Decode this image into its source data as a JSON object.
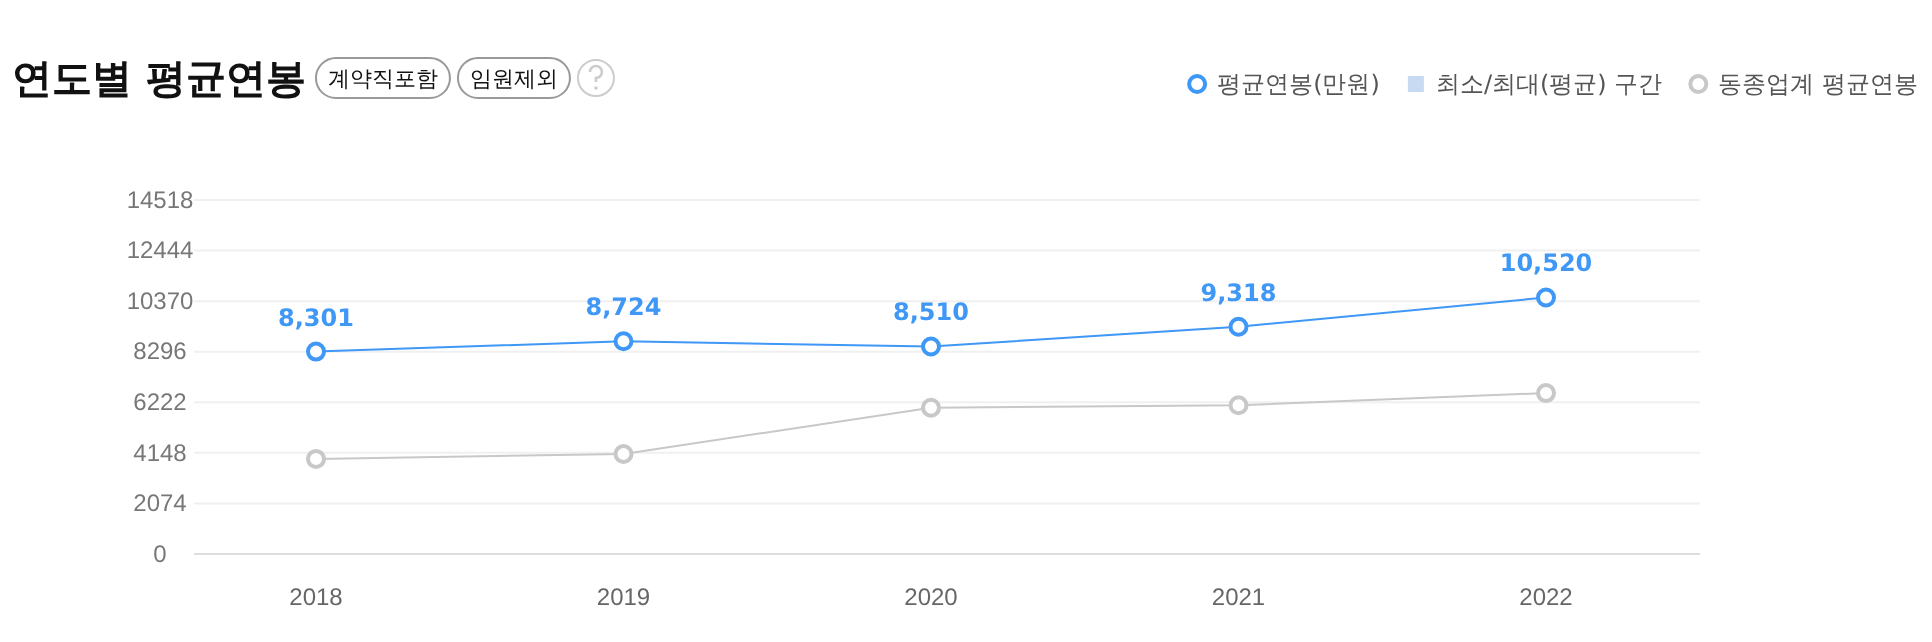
{
  "chart_data": {
    "type": "line",
    "title": "연도별 평균연봉",
    "annotations": [
      "계약직포함",
      "임원제외"
    ],
    "categories": [
      "2018",
      "2019",
      "2020",
      "2021",
      "2022"
    ],
    "series": [
      {
        "name": "평균연봉(만원)",
        "color": "#3f97f6",
        "values": [
          8301,
          8724,
          8510,
          9318,
          10520
        ],
        "value_labels": [
          "8,301",
          "8,724",
          "8,510",
          "9,318",
          "10,520"
        ]
      },
      {
        "name": "최소/최대(평균) 구간",
        "type": "area",
        "color": "#c8daf2",
        "values": [
          null,
          null,
          null,
          null,
          null
        ]
      },
      {
        "name": "동종업계 평균연봉",
        "color": "#c8c8c8",
        "values": [
          3900,
          4100,
          6000,
          6100,
          6600
        ]
      }
    ],
    "ylim": [
      0,
      14518
    ],
    "yticks": [
      0,
      2074,
      4148,
      6222,
      8296,
      10370,
      12444,
      14518
    ],
    "grid": "y",
    "legend": "top right",
    "marker": "circle"
  }
}
